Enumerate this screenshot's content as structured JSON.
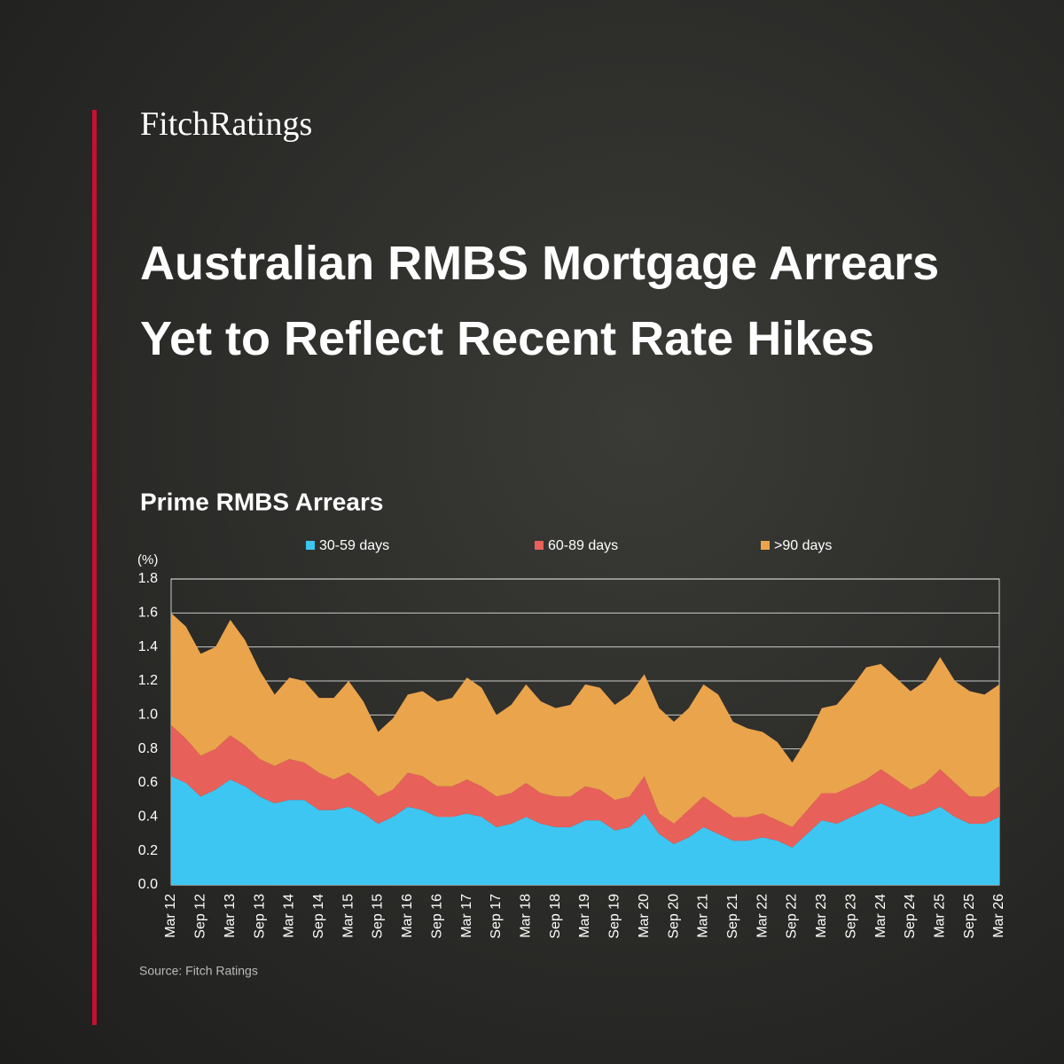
{
  "brand": "FitchRatings",
  "title": "Australian RMBS Mortgage Arrears Yet to Reflect Recent Rate Hikes",
  "chart_data": {
    "type": "stacked_area",
    "title": "Prime RMBS Arrears",
    "y_unit": "(%)",
    "source": "Source: Fitch Ratings",
    "categories": [
      "Mar 12",
      null,
      "Sep 12",
      null,
      "Mar 13",
      null,
      "Sep 13",
      null,
      "Mar 14",
      null,
      "Sep 14",
      null,
      "Mar 15",
      null,
      "Sep 15",
      null,
      "Mar 16",
      null,
      "Sep 16",
      null,
      "Mar 17",
      null,
      "Sep 17",
      null,
      "Mar 18",
      null,
      "Sep 18",
      null,
      "Mar 19",
      null,
      "Sep 19",
      null,
      "Mar 20",
      null,
      "Sep 20",
      null,
      "Mar 21",
      null,
      "Sep 21",
      null,
      "Mar 22",
      null,
      "Sep 22",
      null,
      "Mar 23",
      null,
      "Sep 23",
      null,
      "Mar 24",
      null,
      "Sep 24",
      null,
      "Mar 25",
      null,
      "Sep 25",
      null,
      "Mar 26"
    ],
    "series": [
      {
        "name": "30-59 days",
        "color": "#3ec6f2",
        "values": [
          0.64,
          0.6,
          0.52,
          0.56,
          0.62,
          0.58,
          0.52,
          0.48,
          0.5,
          0.5,
          0.44,
          0.44,
          0.46,
          0.42,
          0.36,
          0.4,
          0.46,
          0.44,
          0.4,
          0.4,
          0.42,
          0.4,
          0.34,
          0.36,
          0.4,
          0.36,
          0.34,
          0.34,
          0.38,
          0.38,
          0.32,
          0.34,
          0.42,
          0.3,
          0.24,
          0.28,
          0.34,
          0.3,
          0.26,
          0.26,
          0.28,
          0.26,
          0.22,
          0.3,
          0.38,
          0.36,
          0.4,
          0.44,
          0.48,
          0.44,
          0.4,
          0.42,
          0.46,
          0.4,
          0.36,
          0.36,
          0.4
        ]
      },
      {
        "name": "60-89 days",
        "color": "#e8605a",
        "values": [
          0.3,
          0.26,
          0.24,
          0.24,
          0.26,
          0.24,
          0.22,
          0.22,
          0.24,
          0.22,
          0.22,
          0.18,
          0.2,
          0.18,
          0.16,
          0.16,
          0.2,
          0.2,
          0.18,
          0.18,
          0.2,
          0.18,
          0.18,
          0.18,
          0.2,
          0.18,
          0.18,
          0.18,
          0.2,
          0.18,
          0.18,
          0.18,
          0.22,
          0.12,
          0.12,
          0.16,
          0.18,
          0.16,
          0.14,
          0.14,
          0.14,
          0.12,
          0.12,
          0.14,
          0.16,
          0.18,
          0.18,
          0.18,
          0.2,
          0.18,
          0.16,
          0.18,
          0.22,
          0.2,
          0.16,
          0.16,
          0.18
        ]
      },
      {
        "name": ">90 days",
        "color": "#eaa44c",
        "values": [
          0.66,
          0.66,
          0.6,
          0.6,
          0.68,
          0.62,
          0.52,
          0.42,
          0.48,
          0.48,
          0.44,
          0.48,
          0.54,
          0.48,
          0.38,
          0.42,
          0.46,
          0.5,
          0.5,
          0.52,
          0.6,
          0.58,
          0.48,
          0.52,
          0.58,
          0.54,
          0.52,
          0.54,
          0.6,
          0.6,
          0.56,
          0.6,
          0.6,
          0.62,
          0.6,
          0.6,
          0.66,
          0.66,
          0.56,
          0.52,
          0.48,
          0.46,
          0.38,
          0.42,
          0.5,
          0.52,
          0.58,
          0.66,
          0.62,
          0.6,
          0.58,
          0.6,
          0.66,
          0.6,
          0.62,
          0.6,
          0.6
        ]
      }
    ],
    "ylim": [
      0,
      1.8
    ],
    "yticks": [
      {
        "value": 0,
        "label": "0.0"
      },
      0.2,
      0.4,
      0.6,
      0.8,
      {
        "value": 1,
        "label": "1.0"
      },
      1.2,
      1.4,
      1.6,
      1.8
    ],
    "grid": true,
    "legend": "top"
  }
}
